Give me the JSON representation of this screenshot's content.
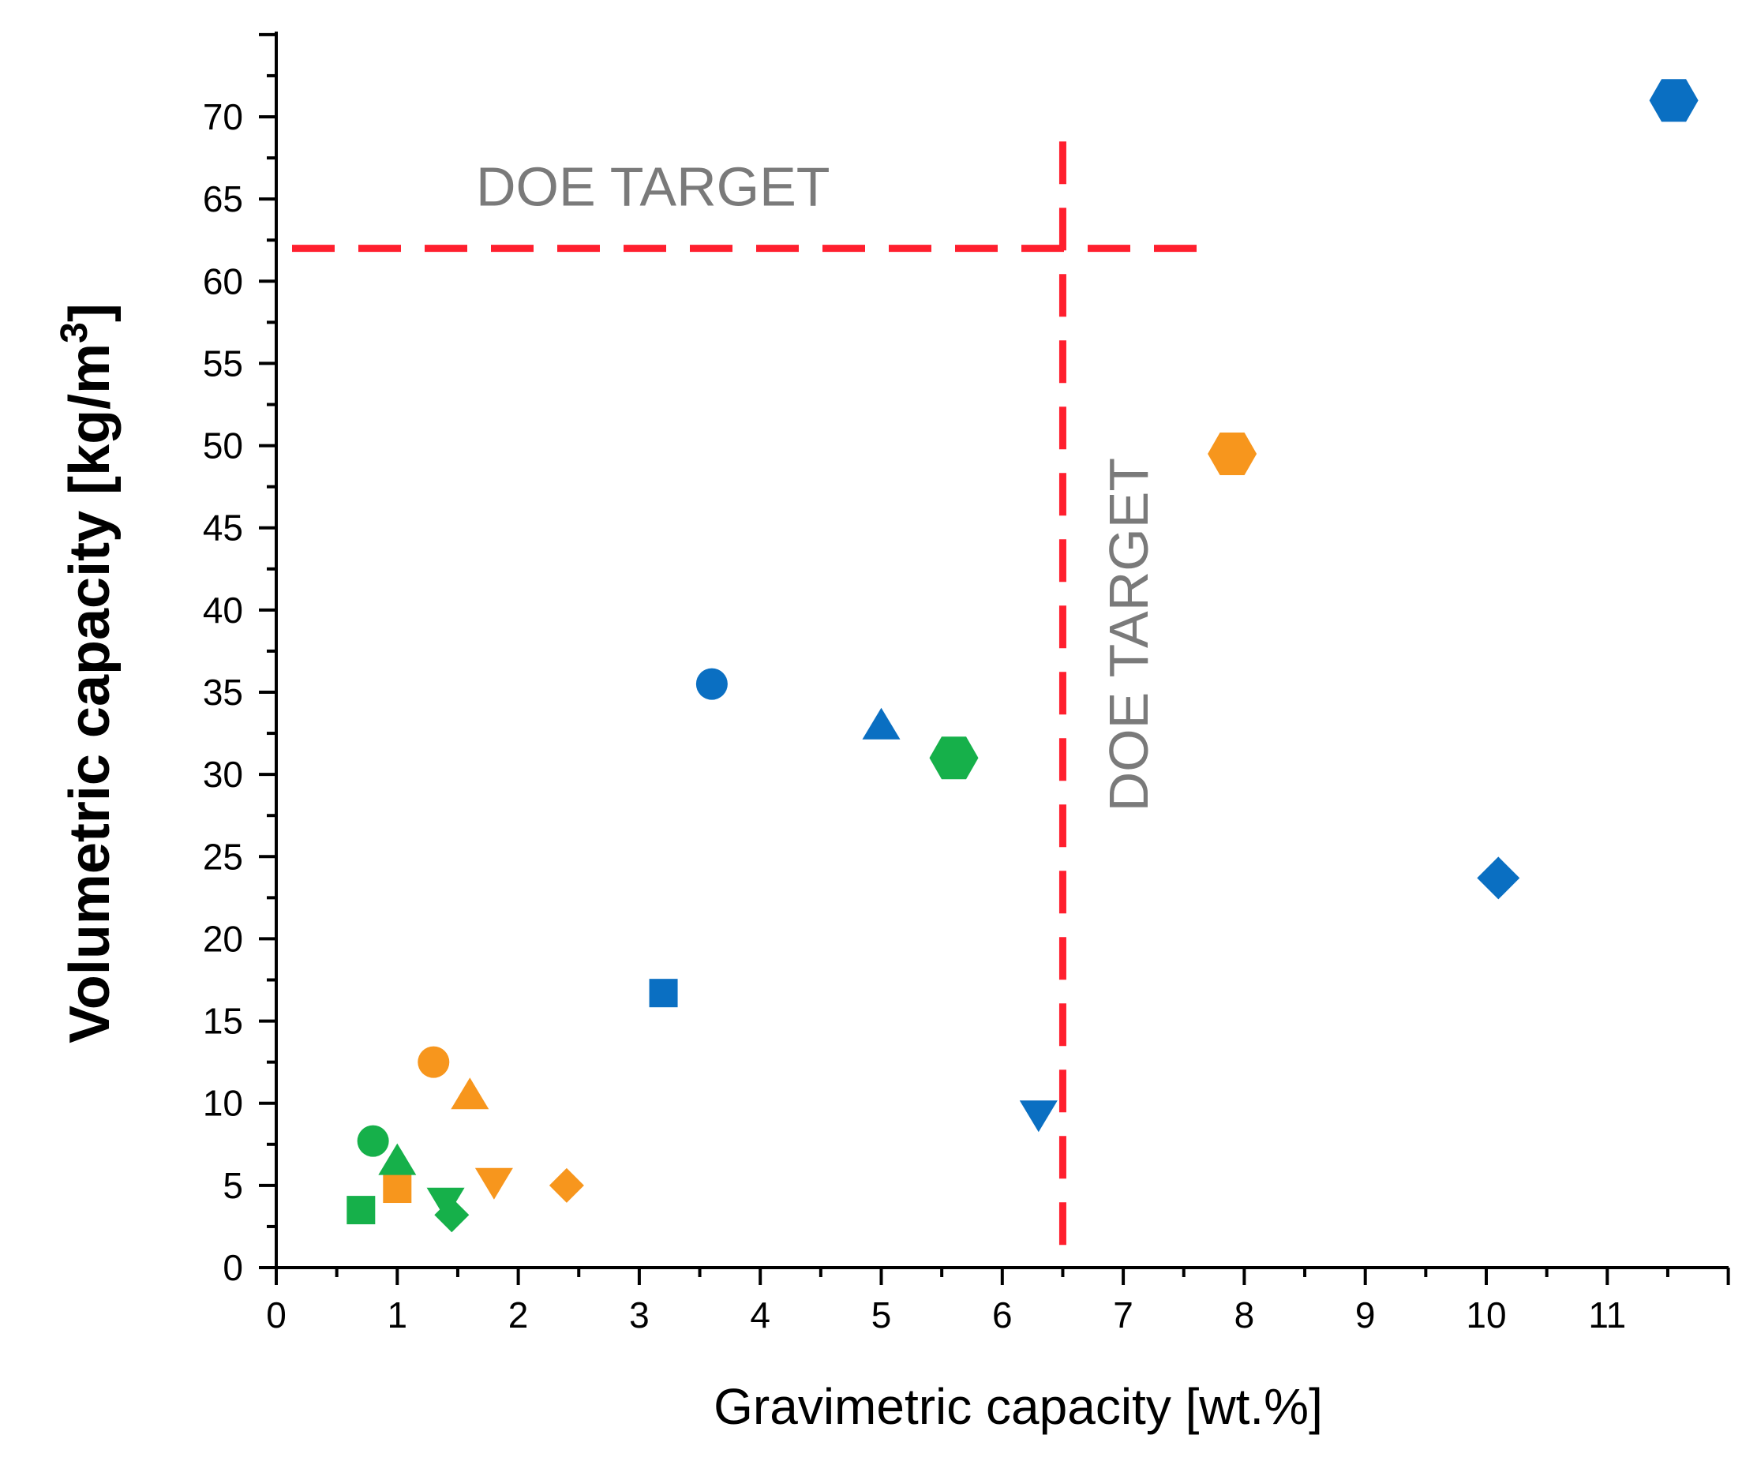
{
  "chart_data": {
    "type": "scatter",
    "xlabel": "Gravimetric capacity [wt.%]",
    "ylabel_text": "Volumetric capacity [kg/m",
    "ylabel_sup": "3",
    "ylabel_close": "]",
    "xlim": [
      0,
      12
    ],
    "ylim": [
      0,
      75
    ],
    "x_ticks": [
      0,
      1,
      2,
      3,
      4,
      5,
      6,
      7,
      8,
      9,
      10,
      11
    ],
    "y_ticks": [
      0,
      5,
      10,
      15,
      20,
      25,
      30,
      35,
      40,
      45,
      50,
      55,
      60,
      65,
      70
    ],
    "colors": {
      "blue": "#0a6fc2",
      "orange": "#f7961d",
      "green": "#16b04a",
      "target": "#ff1f2e",
      "annotation": "#7a7a7a"
    },
    "targets": {
      "gravimetric": 6.5,
      "volumetric": 62
    },
    "annotations": {
      "horizontal": "DOE TARGET",
      "vertical": "DOE TARGET"
    },
    "series": [
      {
        "name": "blue",
        "color": "#0a6fc2",
        "points": [
          {
            "x": 11.55,
            "y": 71,
            "marker": "hexagon"
          },
          {
            "x": 3.6,
            "y": 35.5,
            "marker": "circle"
          },
          {
            "x": 5.0,
            "y": 33,
            "marker": "triangle-up"
          },
          {
            "x": 3.2,
            "y": 16.7,
            "marker": "square"
          },
          {
            "x": 10.1,
            "y": 23.7,
            "marker": "diamond"
          },
          {
            "x": 6.3,
            "y": 9.3,
            "marker": "triangle-down"
          }
        ]
      },
      {
        "name": "orange",
        "color": "#f7961d",
        "points": [
          {
            "x": 7.9,
            "y": 49.5,
            "marker": "hexagon"
          },
          {
            "x": 1.3,
            "y": 12.5,
            "marker": "circle"
          },
          {
            "x": 1.6,
            "y": 10.5,
            "marker": "triangle-up"
          },
          {
            "x": 1.0,
            "y": 4.8,
            "marker": "square"
          },
          {
            "x": 2.4,
            "y": 5.0,
            "marker": "diamond"
          },
          {
            "x": 1.8,
            "y": 5.2,
            "marker": "triangle-down"
          }
        ]
      },
      {
        "name": "green",
        "color": "#16b04a",
        "points": [
          {
            "x": 5.6,
            "y": 31,
            "marker": "hexagon"
          },
          {
            "x": 0.8,
            "y": 7.7,
            "marker": "circle"
          },
          {
            "x": 1.0,
            "y": 6.5,
            "marker": "triangle-up"
          },
          {
            "x": 0.7,
            "y": 3.5,
            "marker": "square"
          },
          {
            "x": 1.45,
            "y": 3.2,
            "marker": "diamond"
          },
          {
            "x": 1.4,
            "y": 4.0,
            "marker": "triangle-down"
          }
        ]
      }
    ]
  }
}
